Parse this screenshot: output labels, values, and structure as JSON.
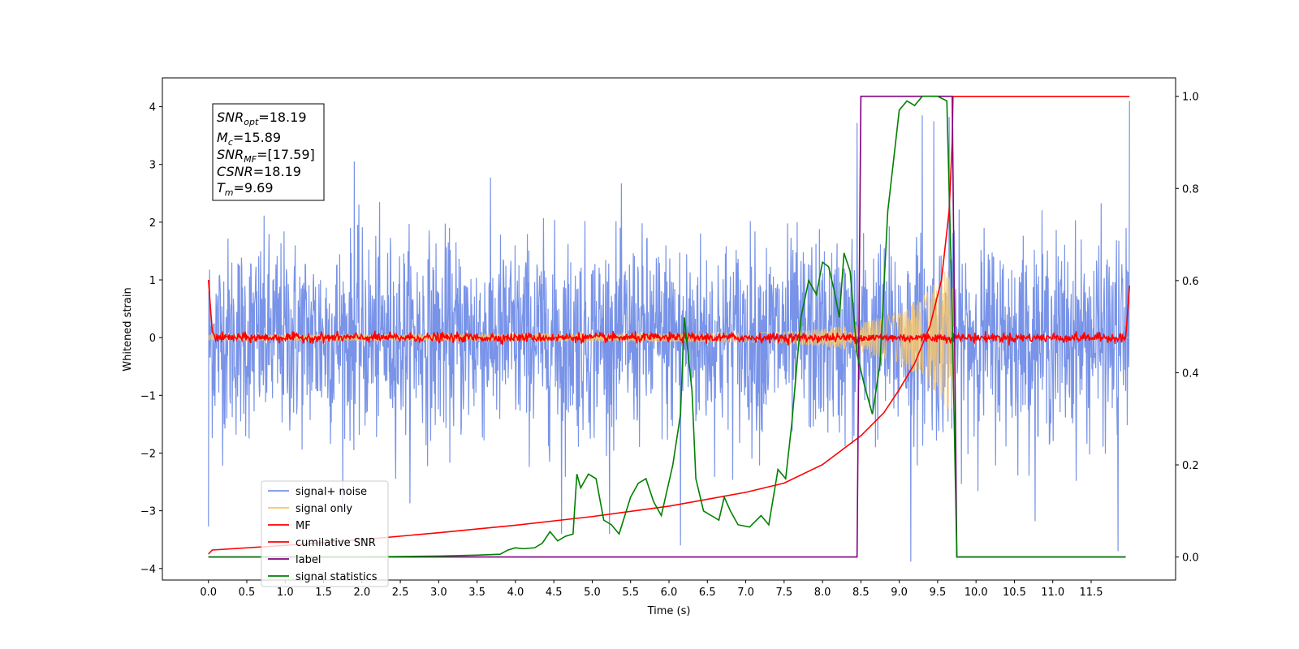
{
  "chart_data": {
    "type": "line",
    "title": "",
    "xlabel": "Time (s)",
    "ylabel": "Whitened strain",
    "xlim": [
      -0.6,
      12.6
    ],
    "ylim": [
      -4.2,
      4.5
    ],
    "y2lim": [
      -0.05,
      1.04
    ],
    "grid": false,
    "legend_position": "lower-left",
    "xticks": [
      0.0,
      0.5,
      1.0,
      1.5,
      2.0,
      2.5,
      3.0,
      3.5,
      4.0,
      4.5,
      5.0,
      5.5,
      6.0,
      6.5,
      7.0,
      7.5,
      8.0,
      8.5,
      9.0,
      9.5,
      10.0,
      10.5,
      11.0,
      11.5
    ],
    "xtick_labels": [
      "0.0",
      "0.5",
      "1.0",
      "1.5",
      "2.0",
      "2.5",
      "3.0",
      "3.5",
      "4.0",
      "4.5",
      "5.0",
      "5.5",
      "6.0",
      "6.5",
      "7.0",
      "7.5",
      "8.0",
      "8.5",
      "9.0",
      "9.5",
      "10.0",
      "10.5",
      "11.0",
      "11.5"
    ],
    "yticks": [
      4,
      3,
      2,
      1,
      0,
      -1,
      -2,
      -3,
      -4
    ],
    "ytick_labels": [
      "4",
      "3",
      "2",
      "1",
      "0",
      "−1",
      "−2",
      "−3",
      "−4"
    ],
    "y2ticks": [
      1.0,
      0.8,
      0.6,
      0.4,
      0.2,
      0.0
    ],
    "y2tick_labels": [
      "1.0",
      "0.8",
      "0.6",
      "0.4",
      "0.2",
      "0.0"
    ],
    "annotation": {
      "snr_opt": "18.19",
      "mc": "15.89",
      "snr_mf": "[17.59]",
      "csnr": "18.19",
      "tm": "9.69"
    },
    "series": [
      {
        "name": "signal+ noise",
        "color": "#7893e8",
        "axis": "left",
        "style": "dense noise band",
        "x_range": [
          0.0,
          12.0
        ],
        "envelope_upper": 2.2,
        "envelope_lower": -2.2,
        "peaks": [
          [
            0.0,
            -3.27
          ],
          [
            1.9,
            3.05
          ],
          [
            4.6,
            -3.4
          ],
          [
            6.15,
            -3.6
          ],
          [
            8.45,
            3.72
          ],
          [
            9.15,
            -3.88
          ],
          [
            9.3,
            3.85
          ],
          [
            9.45,
            3.75
          ],
          [
            9.65,
            3.82
          ],
          [
            11.85,
            -3.7
          ],
          [
            12.0,
            4.1
          ]
        ]
      },
      {
        "name": "signal only",
        "color": "#f5c66e",
        "axis": "left",
        "style": "chirp",
        "merger_time": 9.69,
        "points": [
          [
            0.0,
            0.05
          ],
          [
            7.0,
            0.08
          ],
          [
            7.5,
            0.1
          ],
          [
            8.0,
            0.15
          ],
          [
            8.5,
            0.25
          ],
          [
            9.0,
            0.45
          ],
          [
            9.3,
            0.7
          ],
          [
            9.5,
            1.0
          ],
          [
            9.6,
            1.2
          ],
          [
            9.69,
            1.3
          ],
          [
            9.75,
            0.0
          ]
        ]
      },
      {
        "name": "MF",
        "color": "#ff0000",
        "axis": "left",
        "style": "noisy line near zero",
        "points": [
          [
            0.0,
            1.0
          ],
          [
            0.05,
            0.1
          ],
          [
            0.1,
            0.0
          ],
          [
            11.95,
            0.0
          ],
          [
            12.0,
            0.9
          ]
        ],
        "noise_amplitude": 0.08
      },
      {
        "name": "cumilative SNR",
        "color": "#ff0000",
        "axis": "left",
        "points": [
          [
            0.0,
            -3.75
          ],
          [
            0.05,
            -3.68
          ],
          [
            1.0,
            -3.6
          ],
          [
            2.0,
            -3.5
          ],
          [
            3.0,
            -3.38
          ],
          [
            4.0,
            -3.25
          ],
          [
            5.0,
            -3.1
          ],
          [
            6.0,
            -2.92
          ],
          [
            7.0,
            -2.68
          ],
          [
            7.5,
            -2.52
          ],
          [
            8.0,
            -2.2
          ],
          [
            8.5,
            -1.7
          ],
          [
            8.8,
            -1.3
          ],
          [
            9.0,
            -0.9
          ],
          [
            9.2,
            -0.45
          ],
          [
            9.4,
            0.2
          ],
          [
            9.55,
            1.0
          ],
          [
            9.65,
            2.2
          ],
          [
            9.69,
            3.4
          ],
          [
            9.7,
            4.18
          ],
          [
            12.0,
            4.18
          ]
        ]
      },
      {
        "name": "label",
        "color": "#800080",
        "axis": "right",
        "points": [
          [
            0.0,
            0.0
          ],
          [
            8.45,
            0.0
          ],
          [
            8.5,
            1.0
          ],
          [
            9.69,
            1.0
          ],
          [
            9.75,
            0.0
          ],
          [
            11.95,
            0.0
          ]
        ]
      },
      {
        "name": "signal statistics",
        "color": "#008000",
        "axis": "right",
        "points": [
          [
            0.0,
            0.0
          ],
          [
            0.5,
            0.0
          ],
          [
            1.0,
            0.0
          ],
          [
            2.0,
            0.0
          ],
          [
            3.0,
            0.002
          ],
          [
            3.5,
            0.004
          ],
          [
            3.8,
            0.006
          ],
          [
            3.9,
            0.015
          ],
          [
            4.0,
            0.02
          ],
          [
            4.1,
            0.018
          ],
          [
            4.25,
            0.02
          ],
          [
            4.35,
            0.03
          ],
          [
            4.45,
            0.055
          ],
          [
            4.55,
            0.035
          ],
          [
            4.65,
            0.045
          ],
          [
            4.75,
            0.05
          ],
          [
            4.8,
            0.18
          ],
          [
            4.85,
            0.15
          ],
          [
            4.95,
            0.18
          ],
          [
            5.05,
            0.17
          ],
          [
            5.15,
            0.08
          ],
          [
            5.25,
            0.07
          ],
          [
            5.35,
            0.05
          ],
          [
            5.5,
            0.13
          ],
          [
            5.6,
            0.16
          ],
          [
            5.7,
            0.17
          ],
          [
            5.8,
            0.12
          ],
          [
            5.9,
            0.09
          ],
          [
            6.05,
            0.2
          ],
          [
            6.15,
            0.31
          ],
          [
            6.2,
            0.52
          ],
          [
            6.3,
            0.36
          ],
          [
            6.35,
            0.17
          ],
          [
            6.45,
            0.1
          ],
          [
            6.55,
            0.09
          ],
          [
            6.65,
            0.08
          ],
          [
            6.72,
            0.13
          ],
          [
            6.8,
            0.1
          ],
          [
            6.9,
            0.07
          ],
          [
            7.05,
            0.065
          ],
          [
            7.2,
            0.09
          ],
          [
            7.3,
            0.07
          ],
          [
            7.42,
            0.19
          ],
          [
            7.52,
            0.17
          ],
          [
            7.6,
            0.29
          ],
          [
            7.72,
            0.52
          ],
          [
            7.82,
            0.6
          ],
          [
            7.92,
            0.57
          ],
          [
            8.0,
            0.64
          ],
          [
            8.08,
            0.63
          ],
          [
            8.15,
            0.58
          ],
          [
            8.22,
            0.52
          ],
          [
            8.28,
            0.66
          ],
          [
            8.36,
            0.62
          ],
          [
            8.45,
            0.44
          ],
          [
            8.55,
            0.37
          ],
          [
            8.65,
            0.31
          ],
          [
            8.75,
            0.42
          ],
          [
            8.85,
            0.75
          ],
          [
            9.0,
            0.97
          ],
          [
            9.1,
            0.99
          ],
          [
            9.2,
            0.98
          ],
          [
            9.3,
            1.0
          ],
          [
            9.5,
            1.0
          ],
          [
            9.62,
            0.99
          ],
          [
            9.68,
            0.6
          ],
          [
            9.75,
            0.0
          ],
          [
            10.0,
            0.0
          ],
          [
            11.0,
            0.0
          ],
          [
            11.95,
            0.0
          ]
        ]
      }
    ]
  }
}
